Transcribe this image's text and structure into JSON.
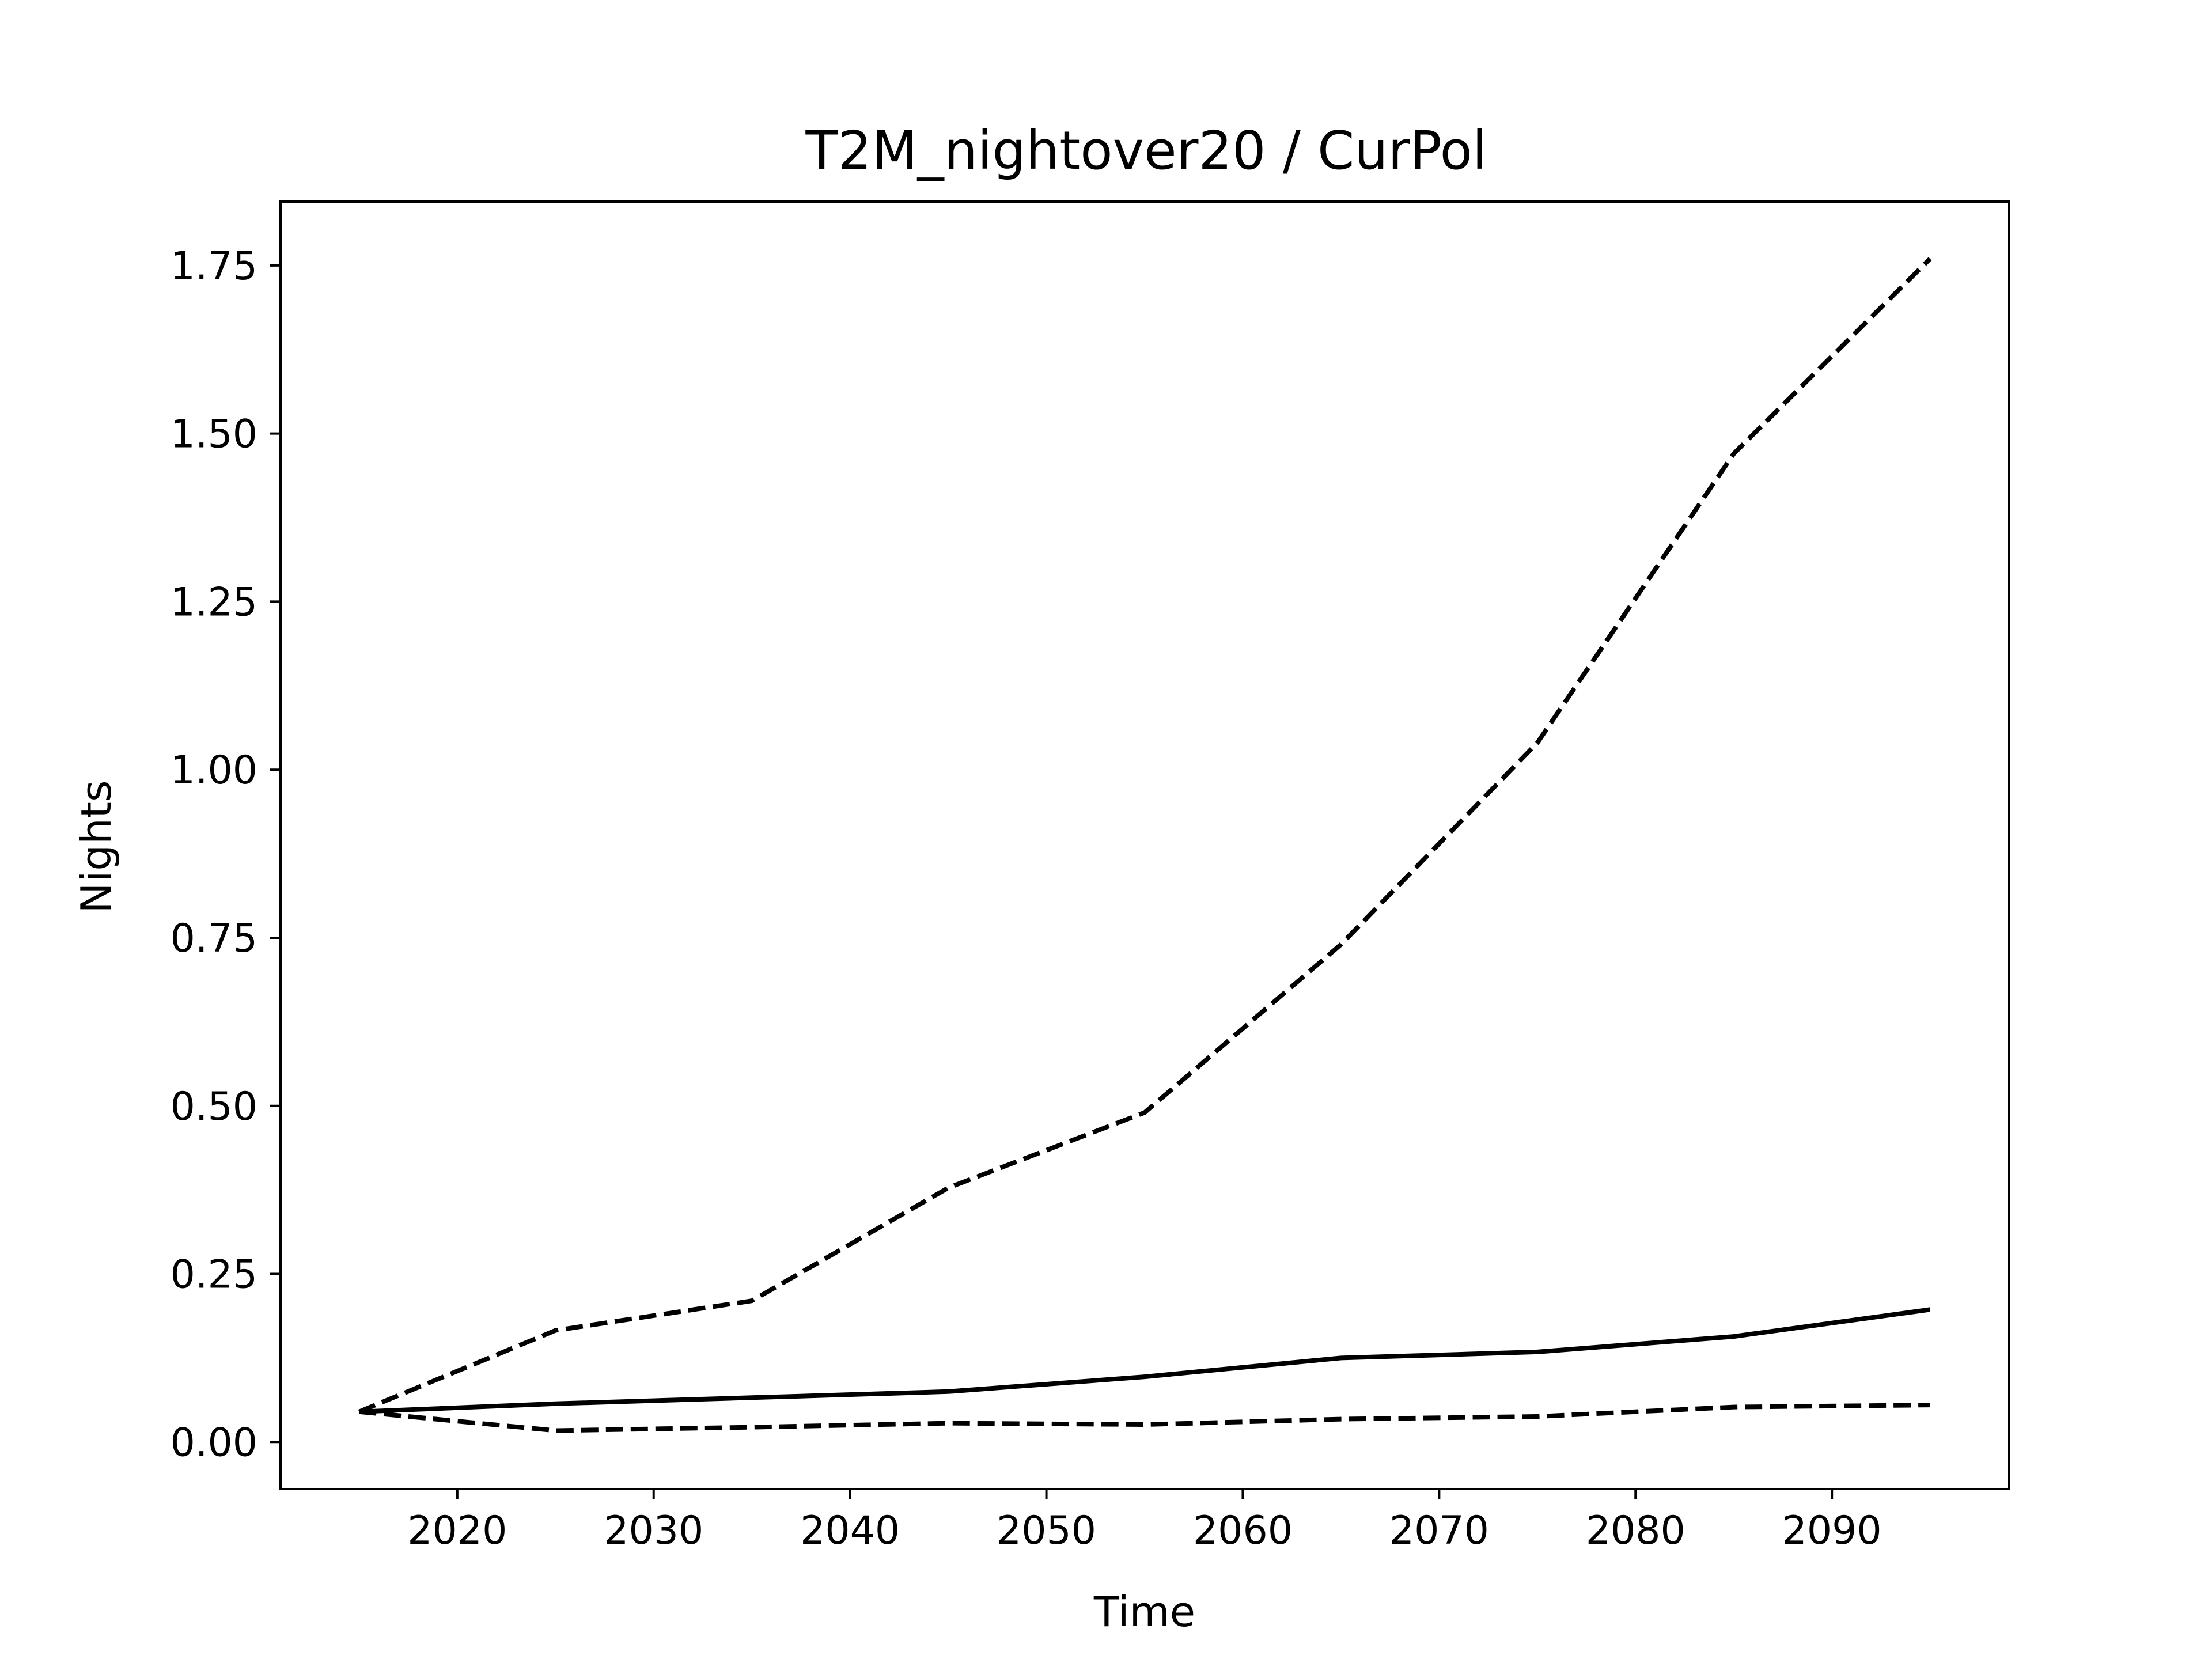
{
  "chart_data": {
    "type": "line",
    "title": "T2M_nightover20 / CurPol",
    "xlabel": "Time",
    "ylabel": "Nights",
    "xlim": [
      2011,
      2099
    ],
    "ylim": [
      -0.07,
      1.845
    ],
    "xticks": [
      2020,
      2030,
      2040,
      2050,
      2060,
      2070,
      2080,
      2090
    ],
    "yticks": [
      "0.00",
      "0.25",
      "0.50",
      "0.75",
      "1.00",
      "1.25",
      "1.50",
      "1.75"
    ],
    "grid": false,
    "legend": "none",
    "x": [
      2015,
      2025,
      2035,
      2045,
      2055,
      2065,
      2075,
      2085,
      2095
    ],
    "series": [
      {
        "style": "solid",
        "color": "#000000",
        "values": [
          0.045,
          0.057,
          0.066,
          0.075,
          0.097,
          0.125,
          0.134,
          0.157,
          0.197
        ]
      },
      {
        "style": "dashed",
        "color": "#000000",
        "values": [
          0.045,
          0.166,
          0.21,
          0.378,
          0.49,
          0.74,
          1.04,
          1.47,
          1.76
        ]
      },
      {
        "style": "dashed",
        "color": "#000000",
        "values": [
          0.045,
          0.017,
          0.022,
          0.028,
          0.026,
          0.034,
          0.038,
          0.052,
          0.055
        ]
      }
    ]
  }
}
